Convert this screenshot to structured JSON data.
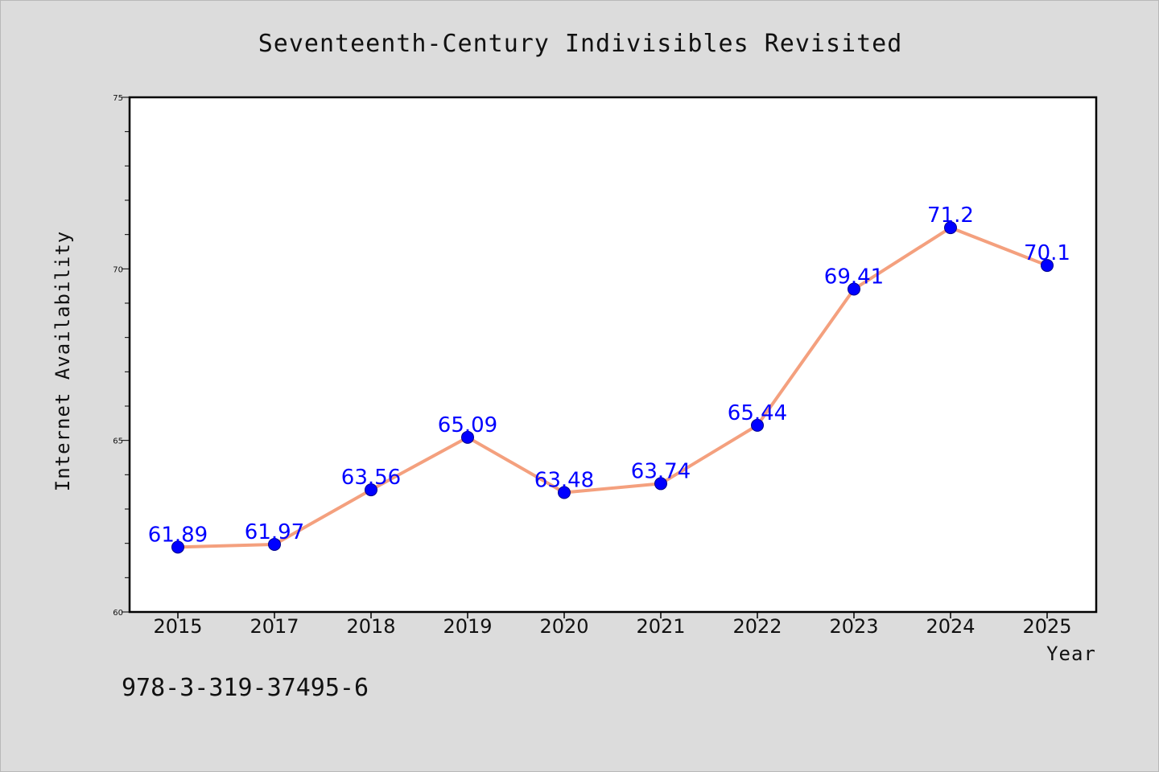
{
  "chart_data": {
    "type": "line",
    "title": "Seventeenth-Century Indivisibles Revisited",
    "xlabel": "Year",
    "ylabel": "Internet Availability",
    "categories": [
      "2015",
      "2017",
      "2018",
      "2019",
      "2020",
      "2021",
      "2022",
      "2023",
      "2024",
      "2025"
    ],
    "series": [
      {
        "values": [
          61.89,
          61.97,
          63.56,
          65.09,
          63.48,
          63.74,
          65.44,
          69.41,
          71.2,
          70.1
        ],
        "data_labels": [
          "61.89",
          "61.97",
          "63.56",
          "65.09",
          "63.48",
          "63.74",
          "65.44",
          "69.41",
          "71.2",
          "70.1"
        ],
        "line_color": "#f4a07e",
        "marker_color": "#0000ff"
      }
    ],
    "ylim": [
      60,
      75
    ],
    "yticks": [
      "60",
      "65",
      "70",
      "75"
    ],
    "grid": false,
    "legend": "none"
  },
  "footer": {
    "isbn": "978-3-319-37495-6"
  },
  "colors": {
    "background": "#dcdcdc",
    "plot_background": "#ffffff",
    "line": "#f4a07e",
    "marker": "#0000ff",
    "data_label": "#0000ff"
  }
}
